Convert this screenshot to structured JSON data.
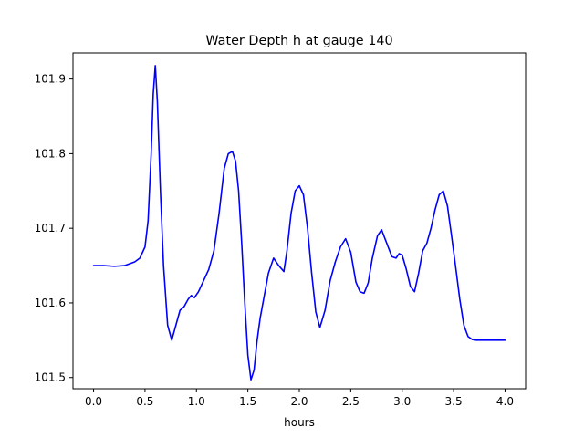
{
  "chart_data": {
    "type": "line",
    "title": "Water Depth h at gauge 140",
    "xlabel": "hours",
    "ylabel": "",
    "xlim": [
      -0.2,
      4.2
    ],
    "ylim": [
      101.485,
      101.935
    ],
    "xticks": [
      0.0,
      0.5,
      1.0,
      1.5,
      2.0,
      2.5,
      3.0,
      3.5,
      4.0
    ],
    "xtick_labels": [
      "0.0",
      "0.5",
      "1.0",
      "1.5",
      "2.0",
      "2.5",
      "3.0",
      "3.5",
      "4.0"
    ],
    "yticks": [
      101.5,
      101.6,
      101.7,
      101.8,
      101.9
    ],
    "ytick_labels": [
      "101.5",
      "101.6",
      "101.7",
      "101.8",
      "101.9"
    ],
    "grid": false,
    "line_color": "#0000ff",
    "series": [
      {
        "x": [
          0.0,
          0.1,
          0.2,
          0.3,
          0.4,
          0.45,
          0.5,
          0.53,
          0.56,
          0.58,
          0.6,
          0.62,
          0.65,
          0.68,
          0.72,
          0.76,
          0.8,
          0.84,
          0.88,
          0.92,
          0.95,
          0.98,
          1.02,
          1.07,
          1.12,
          1.17,
          1.22,
          1.27,
          1.31,
          1.35,
          1.38,
          1.41,
          1.44,
          1.47,
          1.5,
          1.53,
          1.56,
          1.59,
          1.62,
          1.66,
          1.7,
          1.75,
          1.8,
          1.85,
          1.88,
          1.92,
          1.96,
          2.0,
          2.04,
          2.08,
          2.12,
          2.16,
          2.2,
          2.25,
          2.3,
          2.35,
          2.4,
          2.45,
          2.5,
          2.55,
          2.59,
          2.63,
          2.67,
          2.71,
          2.76,
          2.8,
          2.85,
          2.9,
          2.94,
          2.97,
          3.0,
          3.04,
          3.08,
          3.12,
          3.16,
          3.2,
          3.24,
          3.28,
          3.32,
          3.36,
          3.4,
          3.44,
          3.48,
          3.52,
          3.56,
          3.6,
          3.64,
          3.68,
          3.72,
          3.76,
          3.8,
          3.85,
          3.9,
          3.95,
          4.0
        ],
        "y": [
          101.65,
          101.65,
          101.649,
          101.65,
          101.655,
          101.66,
          101.675,
          101.71,
          101.8,
          101.88,
          101.918,
          101.87,
          101.75,
          101.65,
          101.57,
          101.55,
          101.57,
          101.59,
          101.595,
          101.605,
          101.61,
          101.607,
          101.615,
          101.63,
          101.645,
          101.67,
          101.72,
          101.78,
          101.8,
          101.803,
          101.79,
          101.75,
          101.68,
          101.6,
          101.53,
          101.497,
          101.51,
          101.55,
          101.58,
          101.61,
          101.64,
          101.66,
          101.65,
          101.642,
          101.67,
          101.72,
          101.75,
          101.757,
          101.745,
          101.7,
          101.64,
          101.588,
          101.567,
          101.59,
          101.63,
          101.655,
          101.675,
          101.686,
          101.668,
          101.628,
          101.615,
          101.613,
          101.627,
          101.66,
          101.69,
          101.698,
          101.68,
          101.662,
          101.66,
          101.666,
          101.664,
          101.645,
          101.622,
          101.615,
          101.64,
          101.67,
          101.68,
          101.7,
          101.725,
          101.745,
          101.75,
          101.73,
          101.69,
          101.648,
          101.605,
          101.57,
          101.555,
          101.551,
          101.55,
          101.55,
          101.55,
          101.55,
          101.55,
          101.55,
          101.55
        ]
      }
    ]
  }
}
